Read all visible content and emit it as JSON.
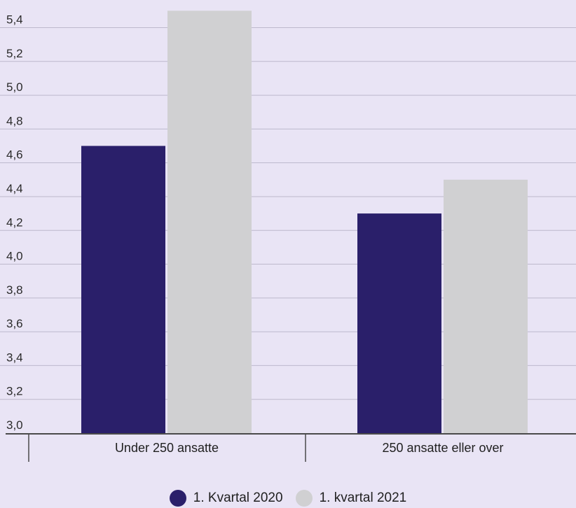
{
  "chart_data": {
    "type": "bar",
    "categories": [
      "Under 250 ansatte",
      "250 ansatte eller over"
    ],
    "series": [
      {
        "name": "1. Kvartal 2020",
        "values": [
          4.7,
          4.3
        ],
        "color": "#2a1f6a"
      },
      {
        "name": "1. kvartal 2021",
        "values": [
          5.5,
          4.5
        ],
        "color": "#d0d0d2"
      }
    ],
    "ylim": [
      3.0,
      5.5
    ],
    "yticks": [
      "3,0",
      "3,2",
      "3,4",
      "3,6",
      "3,8",
      "4,0",
      "4,2",
      "4,4",
      "4,6",
      "4,8",
      "5,0",
      "5,2",
      "5,4"
    ],
    "grid": true,
    "legend_position": "bottom"
  }
}
